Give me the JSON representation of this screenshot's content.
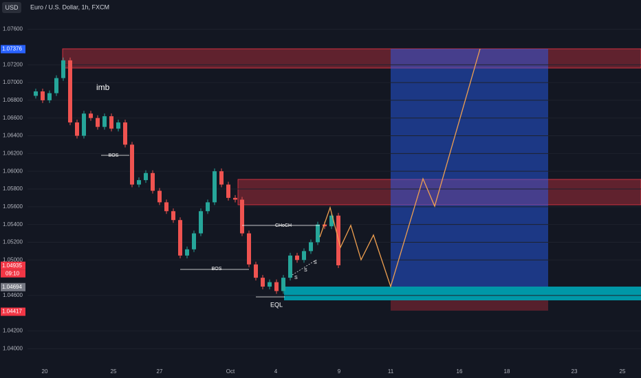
{
  "header": {
    "currency": "USD",
    "symbol": "Euro / U.S. Dollar, 1h, FXCM"
  },
  "chart_data": {
    "type": "candlestick",
    "ylim": [
      1.0367,
      1.0793
    ],
    "yticks": [
      {
        "value": 1.076,
        "label": "1.07600"
      },
      {
        "value": 1.072,
        "label": "1.07200"
      },
      {
        "value": 1.07,
        "label": "1.07000"
      },
      {
        "value": 1.068,
        "label": "1.06800"
      },
      {
        "value": 1.066,
        "label": "1.06600"
      },
      {
        "value": 1.064,
        "label": "1.06400"
      },
      {
        "value": 1.062,
        "label": "1.06200"
      },
      {
        "value": 1.06,
        "label": "1.06000"
      },
      {
        "value": 1.058,
        "label": "1.05800"
      },
      {
        "value": 1.056,
        "label": "1.05600"
      },
      {
        "value": 1.054,
        "label": "1.05400"
      },
      {
        "value": 1.052,
        "label": "1.05200"
      },
      {
        "value": 1.05,
        "label": "1.05000"
      },
      {
        "value": 1.046,
        "label": "1.04600"
      },
      {
        "value": 1.042,
        "label": "1.04200"
      },
      {
        "value": 1.04,
        "label": "1.04000"
      }
    ],
    "x_labels": [
      "20",
      "25",
      "27",
      "Oct",
      "4",
      "9",
      "11",
      "16",
      "18",
      "23",
      "25"
    ],
    "closes": [
      1.0685,
      1.069,
      1.068,
      1.0688,
      1.0705,
      1.0725,
      1.0655,
      1.064,
      1.0665,
      1.066,
      1.065,
      1.0662,
      1.0648,
      1.0655,
      1.063,
      1.0585,
      1.059,
      1.0598,
      1.0578,
      1.0565,
      1.0555,
      1.0545,
      1.0505,
      1.0512,
      1.053,
      1.0555,
      1.0565,
      1.06,
      1.0585,
      1.057,
      1.0568,
      1.053,
      1.0495,
      1.048,
      1.047,
      1.0475,
      1.0465,
      1.048,
      1.0505,
      1.05,
      1.051,
      1.052,
      1.054,
      1.0538,
      1.055,
      1.0494
    ],
    "price_labels": [
      {
        "value": 1.07376,
        "label": "1.07376",
        "color": "#2962ff"
      },
      {
        "value": 1.04935,
        "label": "1.04935",
        "color": "#f23645"
      },
      {
        "value": 1.04694,
        "label": "1.04694",
        "color": "#787b86"
      },
      {
        "value": 1.04417,
        "label": "1.04417",
        "color": "#f23645"
      }
    ],
    "countdown": "09:10",
    "annotations": {
      "imb": "imb",
      "bos1": "BOS",
      "bos2": "BOS",
      "choch": "CHoCH",
      "eql": "EQL",
      "s1": "S",
      "s2": "S",
      "s3": "S"
    }
  }
}
